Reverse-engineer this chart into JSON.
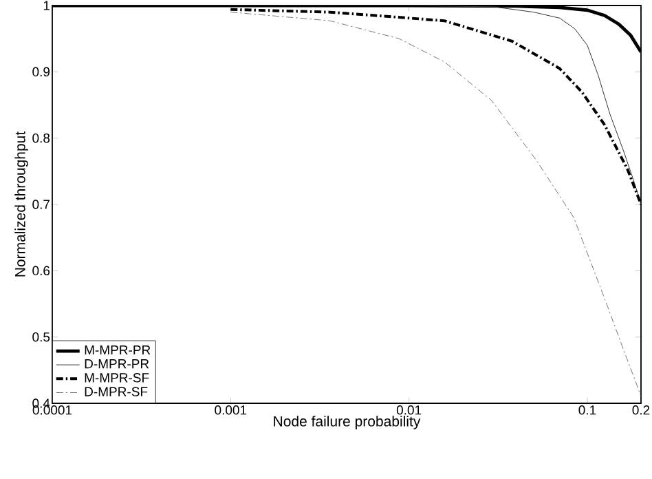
{
  "chart_data": {
    "type": "line",
    "xlabel": "Node failure probability",
    "ylabel": "Normalized throughput",
    "log": "x",
    "xlim": [
      0.0001,
      0.2
    ],
    "ylim": [
      0.4,
      1
    ],
    "xticks": [
      0.0001,
      0.001,
      0.01,
      0.1,
      0.2
    ],
    "yticks": [
      0.4,
      0.5,
      0.6,
      0.7,
      0.8,
      0.9,
      1
    ],
    "legend": "bottom left",
    "grid": false,
    "series": [
      {
        "name": "M-MPR-PR",
        "color": "#000000",
        "line_style": "solid",
        "x": [
          0.0001,
          0.001,
          0.01,
          0.04,
          0.07,
          0.1,
          0.125,
          0.15,
          0.175,
          0.2
        ],
        "values": [
          1,
          1,
          1,
          0.999,
          0.997,
          0.993,
          0.985,
          0.972,
          0.955,
          0.93
        ]
      },
      {
        "name": "D-MPR-PR",
        "color": "#333333",
        "line_style": "solid",
        "x": [
          0.0001,
          0.001,
          0.01,
          0.03,
          0.05,
          0.07,
          0.085,
          0.1,
          0.115,
          0.134,
          0.16,
          0.185,
          0.2
        ],
        "values": [
          1,
          1,
          1,
          0.998,
          0.99,
          0.981,
          0.965,
          0.94,
          0.895,
          0.836,
          0.78,
          0.73,
          0.7
        ]
      },
      {
        "name": "M-MPR-SF",
        "color": "#000000",
        "line_style": "dashed",
        "x": [
          0.001,
          0.0036,
          0.0158,
          0.038,
          0.07,
          0.093,
          0.125,
          0.168,
          0.2
        ],
        "values": [
          0.994,
          0.99,
          0.977,
          0.946,
          0.905,
          0.87,
          0.82,
          0.753,
          0.7
        ]
      },
      {
        "name": "D-MPR-SF",
        "color": "#555555",
        "line_style": "dashed",
        "x": [
          0.001,
          0.0036,
          0.0088,
          0.0158,
          0.029,
          0.052,
          0.084,
          0.125,
          0.16,
          0.19,
          0.2
        ],
        "values": [
          0.99,
          0.977,
          0.95,
          0.915,
          0.857,
          0.766,
          0.68,
          0.558,
          0.48,
          0.427,
          0.41
        ]
      }
    ]
  }
}
